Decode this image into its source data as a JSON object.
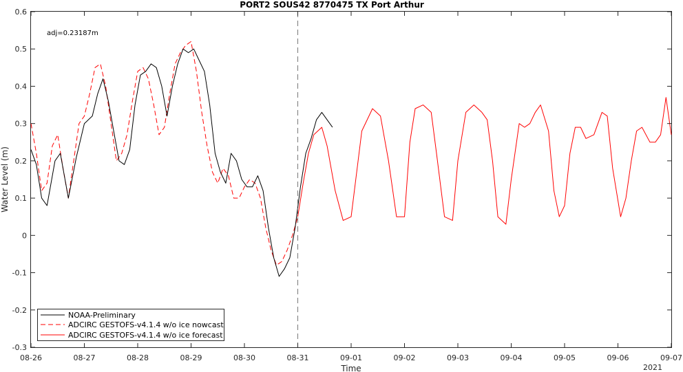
{
  "chart_data": {
    "type": "line",
    "title": "PORT2 SOUS42 8770475 TX Port Arthur",
    "xlabel": "Time",
    "ylabel": "Water Level (m)",
    "annotation": "adj=0.23187m",
    "year_label": "2021",
    "xlim": [
      "08-26",
      "09-07"
    ],
    "ylim": [
      -0.3,
      0.6
    ],
    "x_ticks": [
      "08-26",
      "08-27",
      "08-28",
      "08-29",
      "08-30",
      "08-31",
      "09-01",
      "09-02",
      "09-03",
      "09-04",
      "09-05",
      "09-06",
      "09-07"
    ],
    "y_ticks": [
      -0.3,
      -0.2,
      -0.1,
      0,
      0.1,
      0.2,
      0.3,
      0.4,
      0.5,
      0.6
    ],
    "nowcast_end": "08-31",
    "grid": false,
    "legend_position": "bottom-left",
    "series": [
      {
        "name": "NOAA-Preliminary",
        "color": "#000000",
        "style": "solid",
        "x_days": [
          0,
          0.1,
          0.2,
          0.3,
          0.45,
          0.55,
          0.7,
          0.85,
          1.0,
          1.15,
          1.25,
          1.35,
          1.45,
          1.55,
          1.65,
          1.75,
          1.85,
          1.95,
          2.05,
          2.15,
          2.25,
          2.35,
          2.45,
          2.55,
          2.65,
          2.75,
          2.85,
          2.95,
          3.05,
          3.15,
          3.25,
          3.35,
          3.45,
          3.55,
          3.65,
          3.75,
          3.85,
          3.95,
          4.05,
          4.15,
          4.25,
          4.35,
          4.45,
          4.55,
          4.65,
          4.75,
          4.85,
          4.95,
          5.05,
          5.15,
          5.25,
          5.35,
          5.45,
          5.55,
          5.65
        ],
        "values": [
          0.23,
          0.19,
          0.1,
          0.08,
          0.2,
          0.22,
          0.1,
          0.21,
          0.3,
          0.32,
          0.38,
          0.42,
          0.36,
          0.28,
          0.2,
          0.19,
          0.23,
          0.35,
          0.43,
          0.44,
          0.46,
          0.45,
          0.4,
          0.32,
          0.4,
          0.46,
          0.5,
          0.49,
          0.5,
          0.47,
          0.44,
          0.35,
          0.22,
          0.17,
          0.14,
          0.22,
          0.2,
          0.15,
          0.13,
          0.13,
          0.16,
          0.12,
          0.02,
          -0.06,
          -0.11,
          -0.09,
          -0.06,
          0.02,
          0.13,
          0.22,
          0.26,
          0.31,
          0.33,
          0.31,
          0.29
        ]
      },
      {
        "name": "ADCIRC GESTOFS-v4.1.4 w/o ice nowcast",
        "color": "#ff0000",
        "style": "dashed",
        "x_days": [
          0,
          0.1,
          0.2,
          0.3,
          0.4,
          0.5,
          0.6,
          0.7,
          0.8,
          0.9,
          1.0,
          1.1,
          1.2,
          1.3,
          1.4,
          1.5,
          1.6,
          1.7,
          1.8,
          1.9,
          2.0,
          2.1,
          2.2,
          2.3,
          2.4,
          2.5,
          2.6,
          2.7,
          2.8,
          2.9,
          3.0,
          3.1,
          3.2,
          3.3,
          3.4,
          3.5,
          3.6,
          3.7,
          3.8,
          3.9,
          4.0,
          4.1,
          4.2,
          4.3,
          4.4,
          4.5,
          4.6,
          4.7,
          4.8,
          4.9,
          5.0
        ],
        "values": [
          0.3,
          0.22,
          0.12,
          0.14,
          0.24,
          0.27,
          0.18,
          0.1,
          0.2,
          0.3,
          0.32,
          0.38,
          0.45,
          0.46,
          0.4,
          0.3,
          0.2,
          0.22,
          0.27,
          0.36,
          0.44,
          0.45,
          0.42,
          0.35,
          0.27,
          0.29,
          0.38,
          0.46,
          0.49,
          0.51,
          0.52,
          0.44,
          0.33,
          0.24,
          0.17,
          0.14,
          0.18,
          0.16,
          0.1,
          0.1,
          0.13,
          0.15,
          0.14,
          0.1,
          0.02,
          -0.04,
          -0.08,
          -0.07,
          -0.04,
          0.0,
          0.05
        ]
      },
      {
        "name": "ADCIRC GESTOFS-v4.1.4 w/o ice forecast",
        "color": "#ff0000",
        "style": "solid",
        "x_days": [
          5.0,
          5.1,
          5.2,
          5.3,
          5.45,
          5.55,
          5.7,
          5.85,
          6.0,
          6.2,
          6.4,
          6.55,
          6.7,
          6.85,
          7.0,
          7.1,
          7.2,
          7.35,
          7.5,
          7.6,
          7.75,
          7.9,
          8.0,
          8.15,
          8.3,
          8.45,
          8.55,
          8.65,
          8.75,
          8.9,
          9.0,
          9.15,
          9.25,
          9.35,
          9.45,
          9.55,
          9.7,
          9.8,
          9.9,
          10.0,
          10.1,
          10.2,
          10.3,
          10.4,
          10.55,
          10.7,
          10.8,
          10.9,
          11.05,
          11.15,
          11.25,
          11.35,
          11.45,
          11.6,
          11.7,
          11.8,
          11.9,
          12.0
        ],
        "values": [
          0.05,
          0.14,
          0.22,
          0.27,
          0.29,
          0.24,
          0.12,
          0.04,
          0.05,
          0.28,
          0.34,
          0.32,
          0.2,
          0.05,
          0.05,
          0.25,
          0.34,
          0.35,
          0.33,
          0.22,
          0.05,
          0.04,
          0.2,
          0.33,
          0.35,
          0.33,
          0.31,
          0.2,
          0.05,
          0.03,
          0.15,
          0.3,
          0.29,
          0.3,
          0.33,
          0.35,
          0.28,
          0.12,
          0.05,
          0.08,
          0.22,
          0.29,
          0.29,
          0.26,
          0.27,
          0.33,
          0.32,
          0.18,
          0.05,
          0.1,
          0.2,
          0.28,
          0.29,
          0.25,
          0.25,
          0.27,
          0.37,
          0.27
        ]
      }
    ]
  }
}
